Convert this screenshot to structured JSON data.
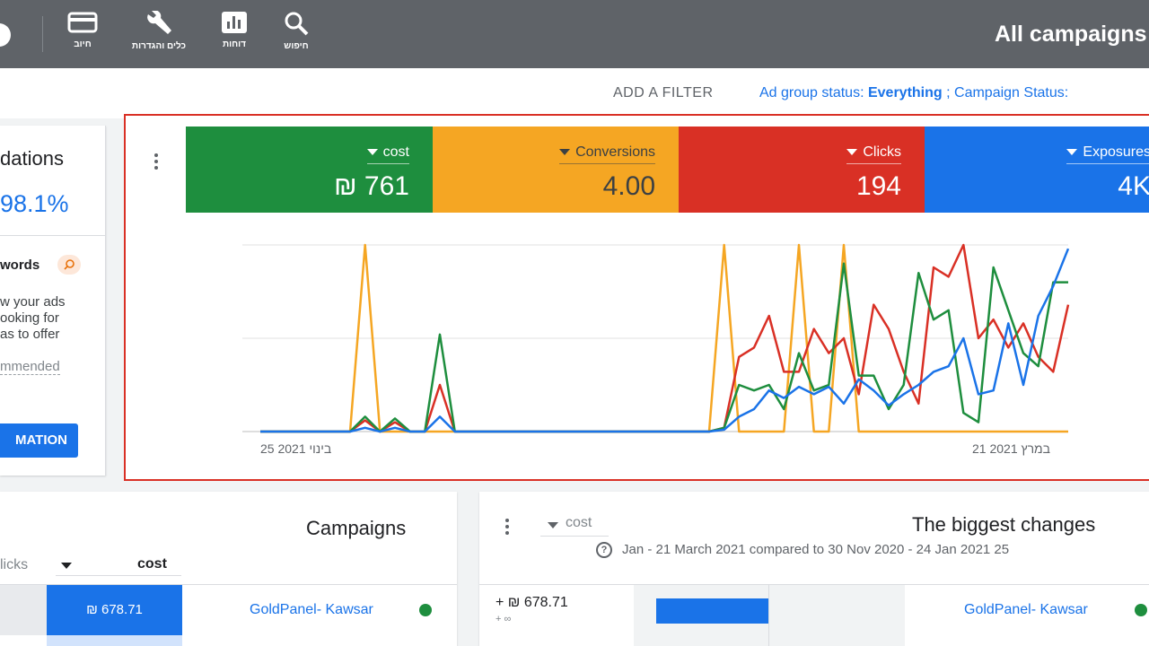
{
  "topbar": {
    "title": "All campaigns",
    "tools": [
      {
        "label": "חיוב",
        "icon": "credit-card-icon"
      },
      {
        "label": "כלים והגדרות",
        "icon": "wrench-icon"
      },
      {
        "label": "דוחות",
        "icon": "reports-icon"
      },
      {
        "label": "חיפוש",
        "icon": "search-icon"
      }
    ]
  },
  "filterbar": {
    "add_filter": "ADD A FILTER",
    "ad_group_status_label": "Ad group status:",
    "ad_group_status_value": "Everything",
    "separator": ";",
    "campaign_status_label": "Campaign Status:"
  },
  "recommendations": {
    "title": "dations",
    "score": "98.1%",
    "item_title": "words",
    "desc_line1": "w your ads",
    "desc_line2": "ooking for",
    "desc_line3": "as to offer",
    "recommended": "mmended",
    "button": "MATION"
  },
  "metrics": [
    {
      "label": "cost",
      "value": "₪ 761",
      "color": "#1e8e3e"
    },
    {
      "label": "Conversions",
      "value": "4.00",
      "color": "#f5a623"
    },
    {
      "label": "Clicks",
      "value": "194",
      "color": "#d93025"
    },
    {
      "label": "Exposures",
      "value": "4K",
      "color": "#1a73e8"
    }
  ],
  "chart_data": {
    "type": "line",
    "x_start_label": "25 בינוי 2021",
    "x_end_label": "21 במרץ 2021",
    "grid": true,
    "series": [
      {
        "name": "Conversions",
        "color": "#f5a623",
        "values": [
          0,
          0,
          0,
          0,
          0,
          0,
          0,
          1,
          0,
          0,
          0,
          0,
          0,
          0,
          0,
          0,
          0,
          0,
          0,
          0,
          0,
          0,
          0,
          0,
          0,
          0,
          0,
          0,
          0,
          0,
          0,
          1,
          0,
          0,
          0,
          0,
          1,
          0,
          0,
          1,
          0,
          0,
          0,
          0,
          0,
          0,
          0,
          0,
          0,
          0,
          0,
          0,
          0,
          0,
          0
        ]
      },
      {
        "name": "Clicks",
        "color": "#d93025",
        "values": [
          0,
          0,
          0,
          0,
          0,
          0,
          0,
          0.06,
          0,
          0.05,
          0,
          0,
          0.25,
          0,
          0,
          0,
          0,
          0,
          0,
          0,
          0,
          0,
          0,
          0,
          0,
          0,
          0,
          0,
          0,
          0,
          0,
          0.02,
          0.4,
          0.45,
          0.62,
          0.32,
          0.32,
          0.55,
          0.42,
          0.5,
          0.2,
          0.68,
          0.55,
          0.32,
          0.15,
          0.88,
          0.83,
          1.0,
          0.5,
          0.6,
          0.45,
          0.58,
          0.4,
          0.32,
          0.68
        ]
      },
      {
        "name": "cost",
        "color": "#1e8e3e",
        "values": [
          0,
          0,
          0,
          0,
          0,
          0,
          0,
          0.08,
          0,
          0.07,
          0,
          0,
          0.52,
          0,
          0,
          0,
          0,
          0,
          0,
          0,
          0,
          0,
          0,
          0,
          0,
          0,
          0,
          0,
          0,
          0,
          0,
          0.02,
          0.25,
          0.22,
          0.25,
          0.12,
          0.42,
          0.22,
          0.25,
          0.9,
          0.3,
          0.3,
          0.12,
          0.25,
          0.85,
          0.6,
          0.65,
          0.1,
          0.05,
          0.88,
          0.65,
          0.42,
          0.35,
          0.8,
          0.8
        ]
      },
      {
        "name": "Exposures",
        "color": "#1a73e8",
        "values": [
          0,
          0,
          0,
          0,
          0,
          0,
          0,
          0.02,
          0,
          0.02,
          0,
          0,
          0.08,
          0,
          0,
          0,
          0,
          0,
          0,
          0,
          0,
          0,
          0,
          0,
          0,
          0,
          0,
          0,
          0,
          0,
          0,
          0.01,
          0.08,
          0.12,
          0.22,
          0.18,
          0.24,
          0.2,
          0.24,
          0.15,
          0.28,
          0.22,
          0.14,
          0.2,
          0.25,
          0.32,
          0.35,
          0.5,
          0.2,
          0.22,
          0.58,
          0.25,
          0.62,
          0.78,
          0.98
        ]
      }
    ]
  },
  "campaigns": {
    "title": "Campaigns",
    "col_clicks": "licks",
    "col_cost": "cost",
    "row_value": "₪ 678.71",
    "row_name": "GoldPanel- Kawsar"
  },
  "changes": {
    "title": "The biggest changes",
    "sort_label": "cost",
    "date_range": "Jan - 21 March 2021 compared to 30 Nov 2020 - 24 Jan 2021 25",
    "row_value": "+ ₪ 678.71",
    "row_sub": "+ ∞",
    "row_name": "GoldPanel- Kawsar"
  }
}
